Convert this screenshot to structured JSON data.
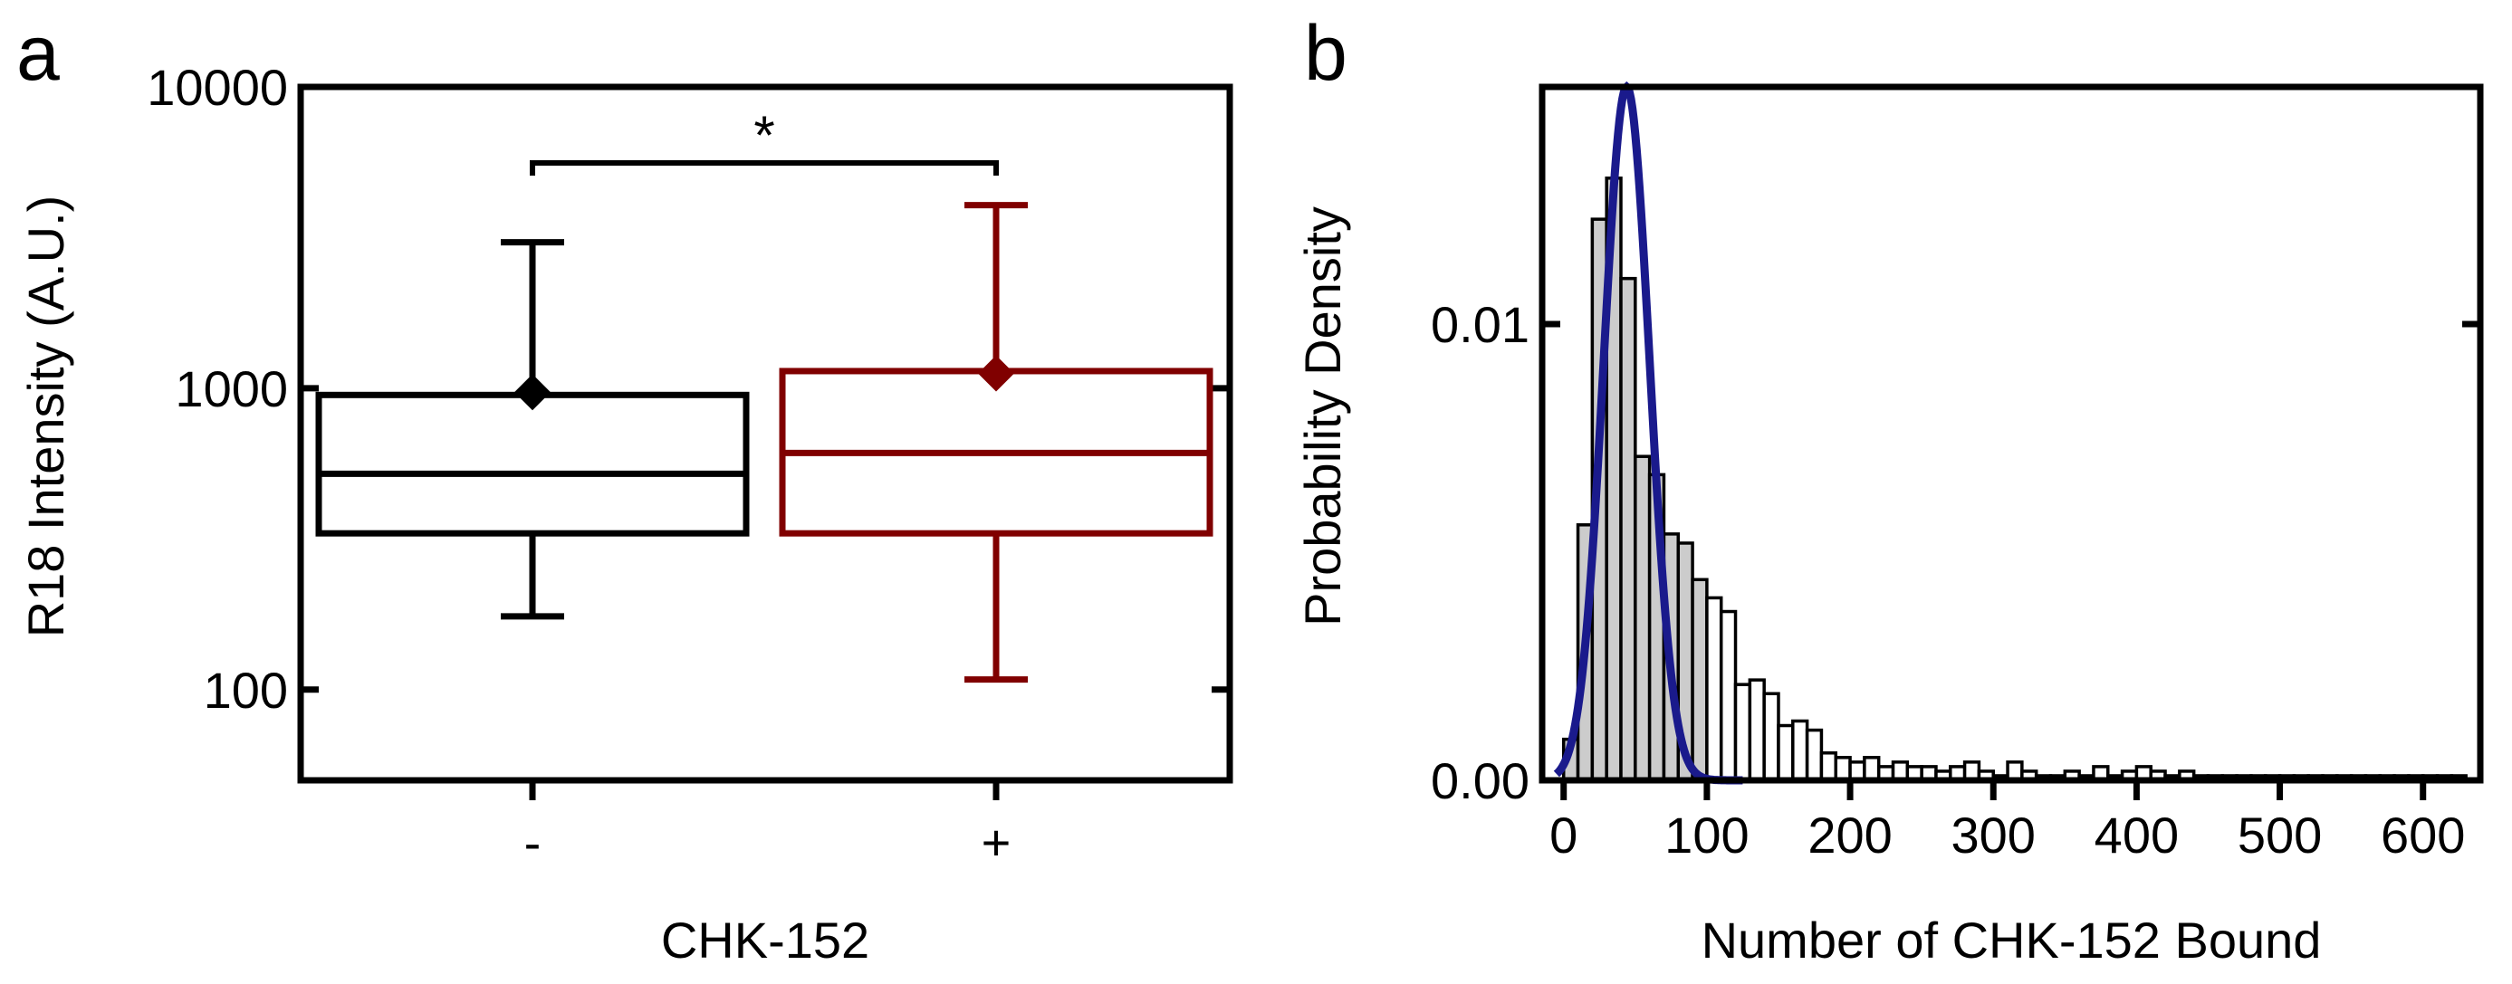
{
  "chart_data": [
    {
      "panel_label": "a",
      "type": "box",
      "title": "",
      "xlabel": "CHK-152",
      "ylabel": "R18 Intensity (A.U.)",
      "yscale": "log",
      "ylim": [
        50,
        10000
      ],
      "yticks": [
        100,
        1000,
        10000
      ],
      "ytick_labels": [
        "100",
        "1000",
        "10000"
      ],
      "categories": [
        "-",
        "+"
      ],
      "boxes": [
        {
          "name": "-",
          "whisker_low": 175,
          "q1": 330,
          "median": 520,
          "q3": 950,
          "whisker_high": 3050,
          "mean": 970,
          "color": "#000000"
        },
        {
          "name": "+",
          "whisker_low": 108,
          "q1": 330,
          "median": 610,
          "q3": 1140,
          "whisker_high": 4050,
          "mean": 1120,
          "color": "#800000"
        }
      ],
      "annotation": {
        "text": "*",
        "between": [
          "-",
          "+"
        ],
        "level": 5000
      }
    },
    {
      "panel_label": "b",
      "type": "histogram",
      "title": "",
      "xlabel": "Number of CHK-152 Bound",
      "ylabel": "Probability Density",
      "xlim": [
        -15,
        640
      ],
      "ylim": [
        0,
        0.0152
      ],
      "xticks": [
        0,
        100,
        200,
        300,
        400,
        500,
        600
      ],
      "xtick_labels": [
        "0",
        "100",
        "200",
        "300",
        "400",
        "500",
        "600"
      ],
      "yticks": [
        0,
        0.01
      ],
      "ytick_labels": [
        "0.00",
        "0.01"
      ],
      "bin_start": 0,
      "bin_width": 10,
      "densities": [
        0.0009,
        0.0056,
        0.0123,
        0.0132,
        0.011,
        0.0071,
        0.0067,
        0.0054,
        0.0052,
        0.0044,
        0.004,
        0.0037,
        0.0021,
        0.0022,
        0.0019,
        0.0012,
        0.0013,
        0.0011,
        0.0006,
        0.0005,
        0.0004,
        0.0005,
        0.0003,
        0.0004,
        0.0003,
        0.0003,
        0.0002,
        0.0003,
        0.0004,
        0.0002,
        0.0001,
        0.0004,
        0.0002,
        0.0001,
        0.0001,
        0.0002,
        0.0001,
        0.0003,
        0.0001,
        0.0002,
        0.0003,
        0.0002,
        0.0001,
        0.0002,
        0.0001,
        0.0001,
        0.0001,
        0.0001,
        0.0001,
        0.0001,
        0.0001,
        0.0001,
        0.0001,
        0.0001,
        0.0001,
        0.0001,
        0.0001,
        0.0001,
        0.0001,
        0.0001,
        0.0001,
        0.0001,
        0.0001
      ],
      "gaussian_fit": {
        "mean": 44,
        "sd": 16,
        "peak": 0.0152,
        "color": "#1a1a8c"
      }
    }
  ]
}
